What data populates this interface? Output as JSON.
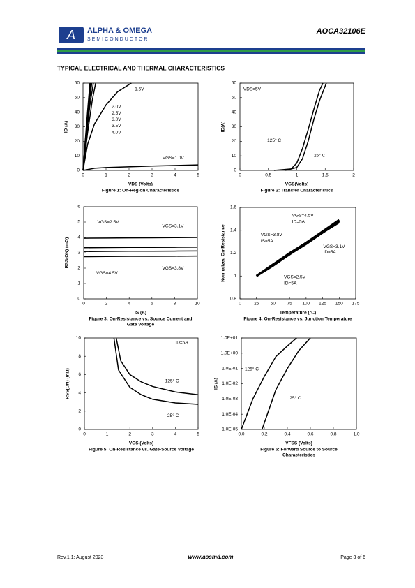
{
  "header": {
    "company": "ALPHA & OMEGA",
    "division": "SEMICONDUCTOR",
    "part": "AOCA32106E"
  },
  "section_title": "TYPICAL ELECTRICAL AND THERMAL CHARACTERISTICS",
  "footer": {
    "revision": "Rev.1.1: August 2023",
    "website": "www.aosmd.com",
    "page": "Page 3 of 6"
  },
  "chart_data": [
    {
      "type": "line",
      "title": [
        "Figure 1: On-Region Characteristics"
      ],
      "xlabel": "VDS (Volts)",
      "ylabel": "ID (A)",
      "xlim": [
        0,
        5
      ],
      "ylim": [
        0,
        60
      ],
      "xticks": [
        0,
        1,
        2,
        3,
        4,
        5
      ],
      "yticks": [
        0,
        10,
        20,
        30,
        40,
        50,
        60
      ],
      "color": "#000000",
      "series": [
        {
          "x": [
            0,
            0.2,
            0.5,
            1,
            1.5,
            2.1
          ],
          "values": [
            0,
            18,
            32,
            45,
            54,
            60
          ]
        },
        {
          "x": [
            0,
            0.2,
            0.4,
            0.55
          ],
          "values": [
            0,
            26,
            48,
            60
          ]
        },
        {
          "x": [
            0,
            0.15,
            0.3,
            0.45
          ],
          "values": [
            0,
            24,
            45,
            60
          ]
        },
        {
          "x": [
            0,
            0.15,
            0.3,
            0.38
          ],
          "values": [
            0,
            27,
            50,
            60
          ]
        },
        {
          "x": [
            0,
            0.1,
            0.2,
            0.33
          ],
          "values": [
            0,
            20,
            38,
            60
          ]
        },
        {
          "x": [
            0,
            0.1,
            0.2,
            0.3
          ],
          "values": [
            0,
            21,
            41,
            60
          ]
        },
        {
          "x": [
            0,
            0.5,
            1,
            3,
            5
          ],
          "values": [
            0,
            1.5,
            2,
            3,
            3.8
          ]
        }
      ],
      "annotations": [
        "1.5V",
        "2.0V",
        "2.5V",
        "3.0V",
        "3.5V",
        "4.0V",
        "VGS=1.0V"
      ]
    },
    {
      "type": "line",
      "title": [
        "Figure 2: Transfer Characteristics"
      ],
      "xlabel": "VGS(Volts)",
      "ylabel": "ID(A)",
      "xlim": [
        0,
        2
      ],
      "ylim": [
        0,
        60
      ],
      "xticks": [
        0,
        0.5,
        1,
        1.5,
        2
      ],
      "yticks": [
        0,
        10,
        20,
        30,
        40,
        50,
        60
      ],
      "color": "#000000",
      "series": [
        {
          "x": [
            0.6,
            0.9,
            1.0,
            1.1,
            1.2,
            1.3,
            1.4,
            1.46
          ],
          "values": [
            0,
            1,
            5,
            15,
            28,
            42,
            55,
            60
          ]
        },
        {
          "x": [
            0.8,
            1.0,
            1.1,
            1.2,
            1.3,
            1.4,
            1.52
          ],
          "values": [
            0,
            2,
            8,
            20,
            35,
            48,
            60
          ]
        }
      ],
      "annotations": [
        "VDS=5V",
        "125° C",
        "25° C"
      ]
    },
    {
      "type": "line",
      "title": [
        "Figure 3: On-Resistance vs. Source Current and",
        "Gate Voltage"
      ],
      "xlabel": "IS (A)",
      "ylabel": "RSS(ON) (mΩ)",
      "xlim": [
        0,
        10
      ],
      "ylim": [
        0,
        6
      ],
      "xticks": [
        0,
        2,
        4,
        6,
        8,
        10
      ],
      "yticks": [
        0,
        1,
        2,
        3,
        4,
        5,
        6
      ],
      "color": "#000000",
      "series": [
        {
          "x": [
            0,
            2,
            4,
            6,
            8,
            10
          ],
          "values": [
            3.95,
            3.96,
            3.97,
            3.98,
            3.99,
            4.0
          ]
        },
        {
          "x": [
            0,
            2,
            4,
            6,
            8,
            10
          ],
          "values": [
            3.33,
            3.34,
            3.35,
            3.35,
            3.36,
            3.37
          ]
        },
        {
          "x": [
            0,
            2,
            4,
            6,
            8,
            10
          ],
          "values": [
            3.08,
            3.09,
            3.1,
            3.1,
            3.11,
            3.12
          ]
        },
        {
          "x": [
            0,
            2,
            4,
            6,
            8,
            10
          ],
          "values": [
            2.75,
            2.76,
            2.77,
            2.77,
            2.78,
            2.79
          ]
        }
      ],
      "annotations": [
        "VGS=2.5V",
        "VGS=3.1V",
        "VGS=4.5V",
        "VGS=3.8V"
      ]
    },
    {
      "type": "line",
      "title": [
        "Figure 4: On-Resistance vs. Junction Temperature"
      ],
      "xlabel": "Temperature (°C)",
      "ylabel": "Normalized On-Resistance",
      "xlim": [
        0,
        175
      ],
      "ylim": [
        0.8,
        1.6
      ],
      "xticks": [
        0,
        25,
        50,
        75,
        100,
        125,
        150,
        175
      ],
      "yticks": [
        0.8,
        1,
        1.2,
        1.4,
        1.6
      ],
      "color": "#000000",
      "series": [
        {
          "x": [
            25,
            50,
            75,
            100,
            125,
            150
          ],
          "values": [
            1.0,
            1.1,
            1.19,
            1.29,
            1.38,
            1.48
          ]
        },
        {
          "x": [
            25,
            50,
            75,
            100,
            125,
            150
          ],
          "values": [
            1.0,
            1.1,
            1.2,
            1.29,
            1.39,
            1.49
          ]
        },
        {
          "x": [
            25,
            50,
            75,
            100,
            125,
            150
          ],
          "values": [
            1.0,
            1.09,
            1.19,
            1.28,
            1.38,
            1.47
          ]
        },
        {
          "x": [
            25,
            50,
            75,
            100,
            125,
            150
          ],
          "values": [
            1.0,
            1.1,
            1.19,
            1.29,
            1.38,
            1.48
          ]
        }
      ],
      "annotations": [
        "VGS=4.5V",
        "ID=5A",
        "VGS=3.8V",
        "IS=5A",
        "VGS=3.1V",
        "ID=5A",
        "VGS=2.5V",
        "ID=5A"
      ]
    },
    {
      "type": "line",
      "title": [
        "Figure 5: On-Resistance vs. Gate-Source Voltage"
      ],
      "xlabel": "VGS (Volts)",
      "ylabel": "RSS(ON) (mΩ)",
      "xlim": [
        0,
        5
      ],
      "ylim": [
        0,
        10
      ],
      "xticks": [
        0,
        1,
        2,
        3,
        4,
        5
      ],
      "yticks": [
        0,
        2,
        4,
        6,
        8,
        10
      ],
      "color": "#000000",
      "series": [
        {
          "x": [
            1.4,
            1.6,
            2,
            2.5,
            3,
            4,
            5
          ],
          "values": [
            10,
            7.5,
            6,
            5.2,
            4.7,
            4.1,
            3.8
          ]
        },
        {
          "x": [
            1.3,
            1.5,
            2,
            2.5,
            3,
            4,
            5
          ],
          "values": [
            10,
            6.5,
            4.6,
            3.8,
            3.3,
            2.9,
            2.75
          ]
        }
      ],
      "annotations": [
        "ID=5A",
        "125° C",
        "25° C"
      ]
    },
    {
      "type": "line",
      "title": [
        "Figure 6: Forward Source to Source",
        "Characteristics"
      ],
      "xlabel": "VFSS (Volts)",
      "ylabel": "IS (A)",
      "xlim": [
        0,
        1
      ],
      "ylim": [
        1e-05,
        10
      ],
      "log_y": true,
      "color": "#000000",
      "xticks": [
        {
          "value": 0,
          "label": "0.0"
        },
        0.2,
        0.4,
        0.6,
        0.8,
        {
          "value": 1,
          "label": "1.0"
        }
      ],
      "yticks": [
        {
          "value": 1e-05,
          "label": "1.0E-05"
        },
        {
          "value": 0.0001,
          "label": "1.0E-04"
        },
        {
          "value": 0.001,
          "label": "1.0E-03"
        },
        {
          "value": 0.01,
          "label": "1.0E-02"
        },
        {
          "value": 0.1,
          "label": "1.0E-01"
        },
        {
          "value": 1,
          "label": "1.0E+00"
        },
        {
          "value": 10,
          "label": "1.0E+01"
        }
      ],
      "series": [
        {
          "x": [
            0.0,
            0.1,
            0.2,
            0.3,
            0.4,
            0.48
          ],
          "values": [
            1e-05,
            0.001,
            0.03,
            0.6,
            3,
            10
          ]
        },
        {
          "x": [
            0.18,
            0.3,
            0.4,
            0.5,
            0.6
          ],
          "values": [
            1e-05,
            0.004,
            0.1,
            1.5,
            10
          ]
        }
      ],
      "annotations": [
        "125° C",
        "25° C"
      ]
    }
  ]
}
